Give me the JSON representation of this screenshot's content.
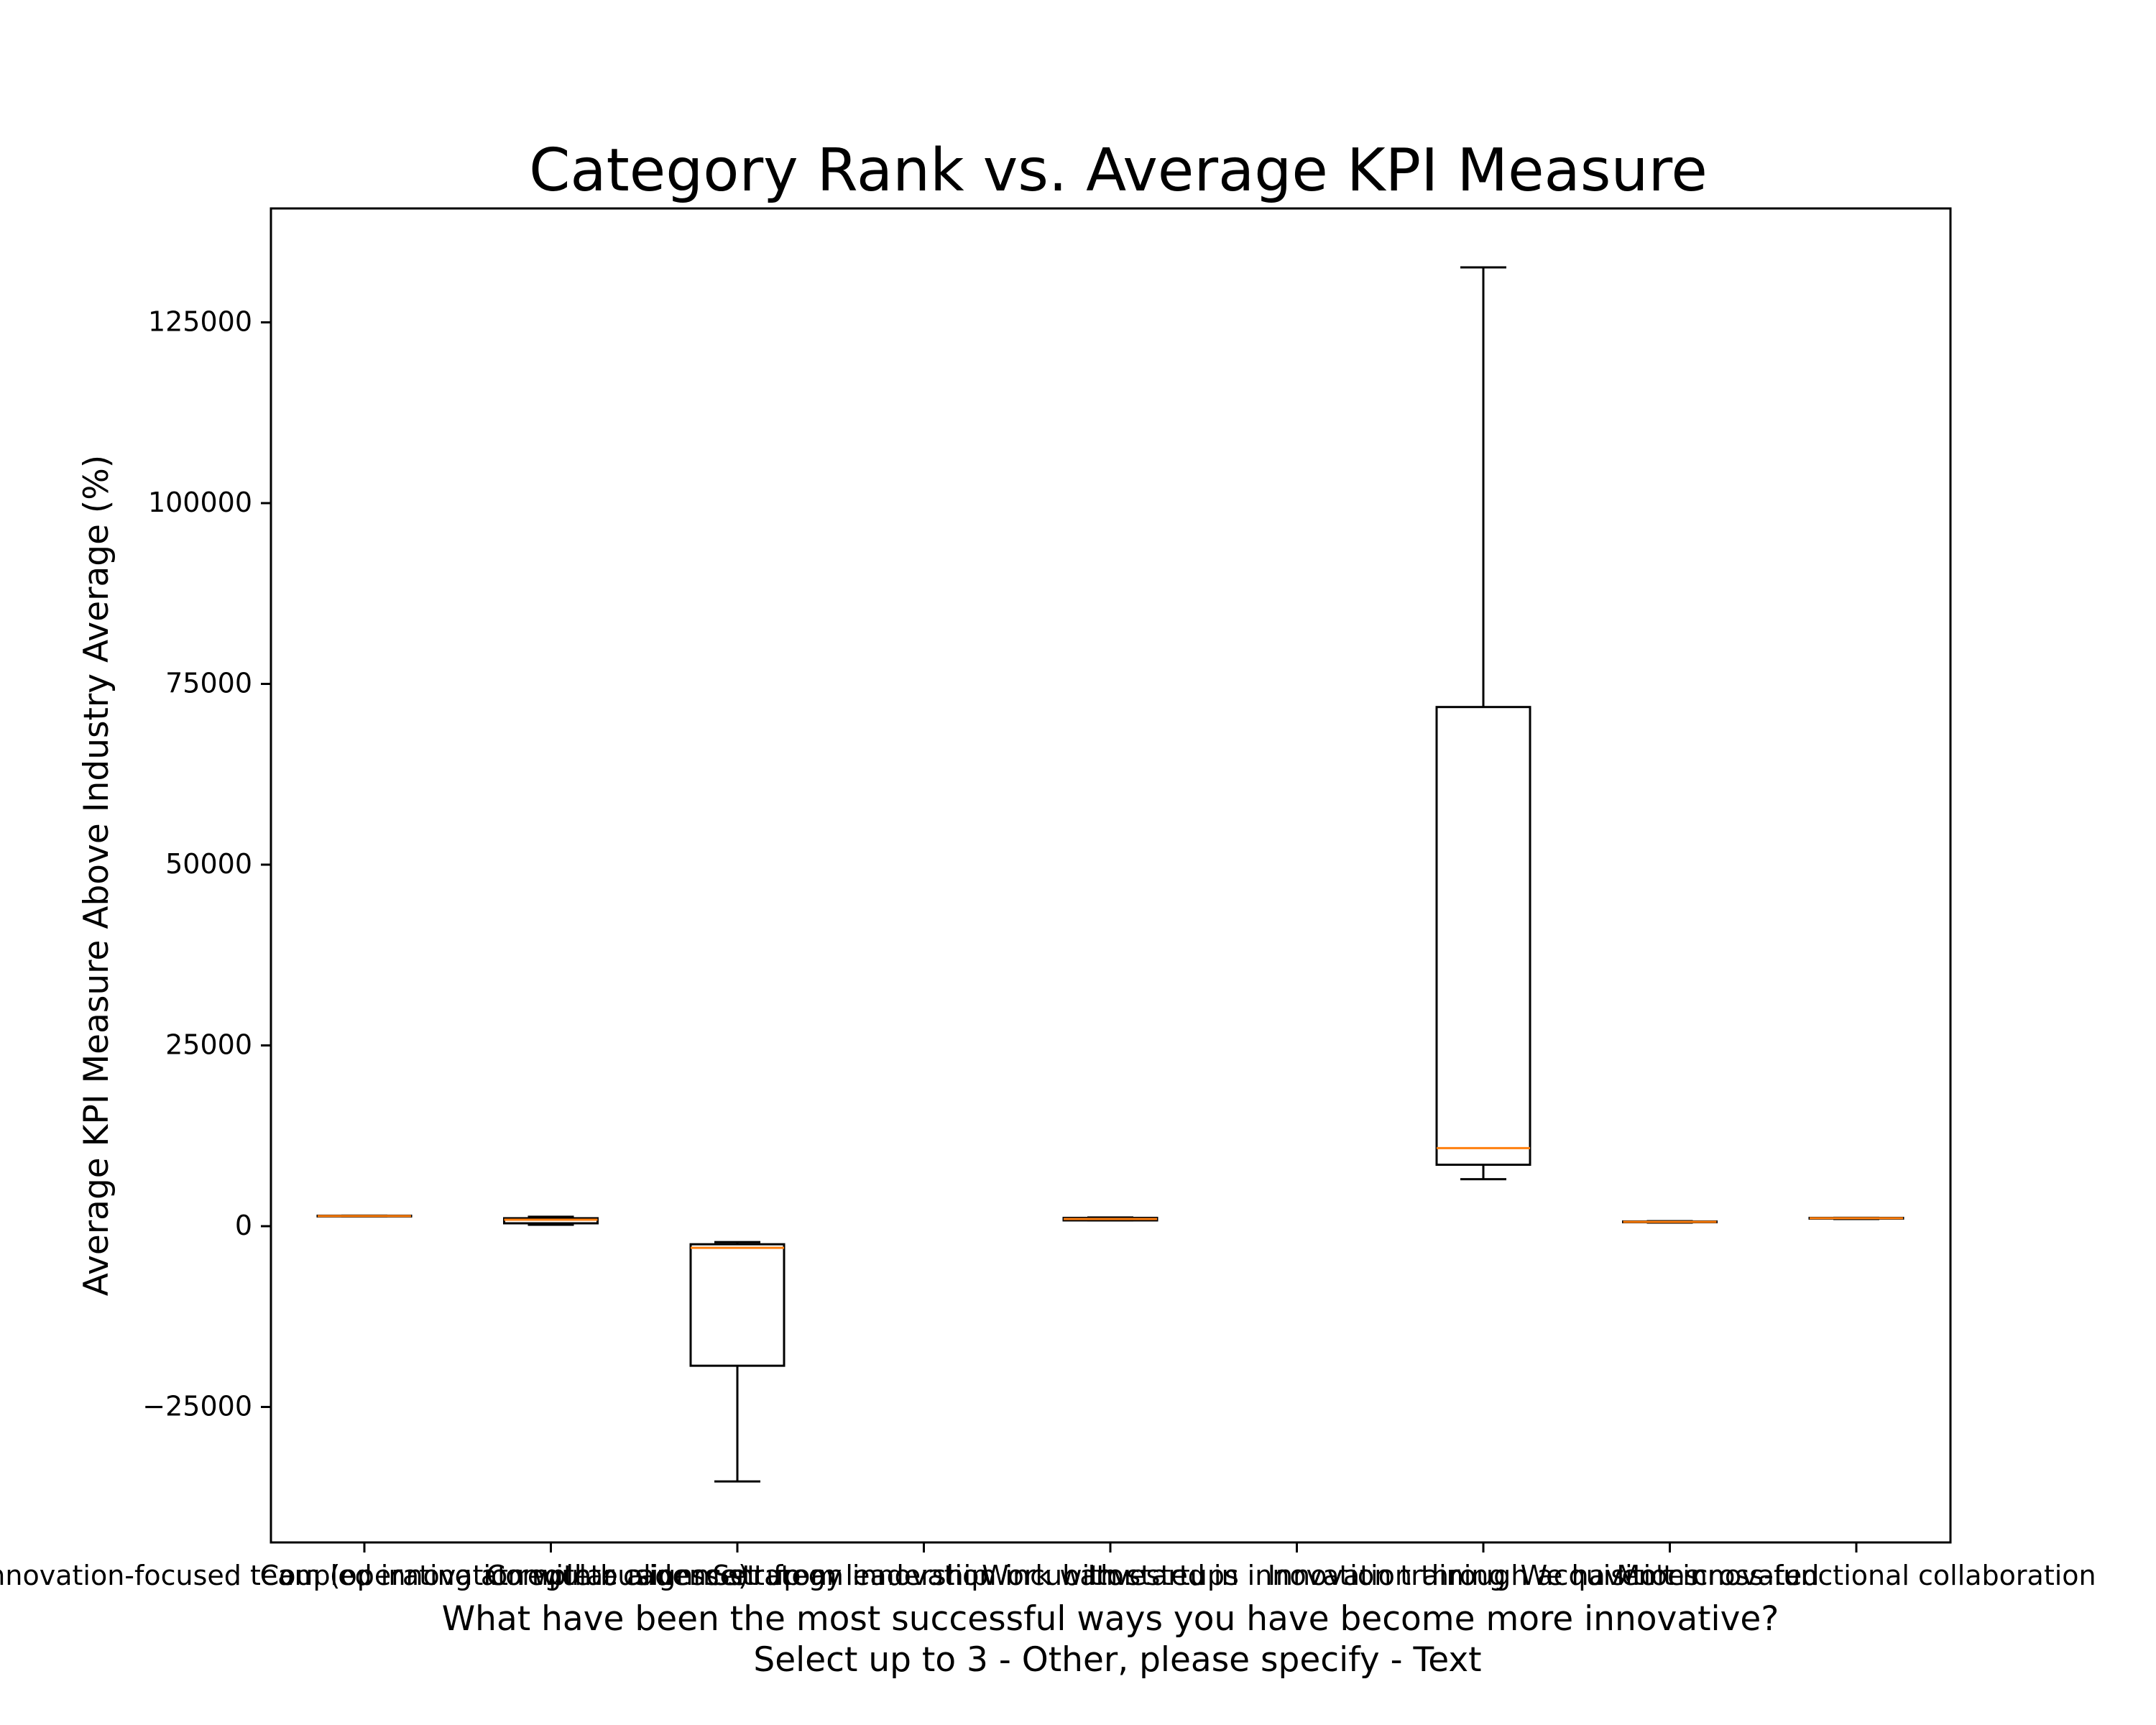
{
  "chart_data": {
    "type": "box",
    "title": "Category Rank vs. Average KPI Measure",
    "xlabel_lines": [
      "What have been the most successful ways you have become more innovative?",
      "Select up to 3 - Other, please specify - Text"
    ],
    "ylabel": "Average KPI Measure Above Industry Average (%)",
    "ylim": [
      -43000,
      141000
    ],
    "yticks": [
      -25000,
      0,
      25000,
      50000,
      75000,
      100000,
      125000
    ],
    "ytick_labels": [
      "−25000",
      "0",
      "25000",
      "50000",
      "75000",
      "100000",
      "125000"
    ],
    "grid": false,
    "colors": {
      "box": "#000000",
      "median": "#ff7f0e",
      "whisker": "#000000"
    },
    "categories": [
      "Innovation-focused team (operating at regular cadence)",
      "Coupled innovation with business strategy",
      "Complete alignment from leadership",
      "Set up an innovation incubator",
      "Work with startups",
      "Invested in innovation training",
      "Innovation through acquisitions",
      "We haven't innovated",
      "More cross-functional collaboration"
    ],
    "boxes": [
      {
        "whislo": 1350,
        "q1": 1350,
        "med": 1400,
        "q3": 1450,
        "whishi": 1450
      },
      {
        "whislo": 200,
        "q1": 400,
        "med": 900,
        "q3": 1100,
        "whishi": 1300
      },
      {
        "whislo": -35300,
        "q1": -19300,
        "med": -3000,
        "q3": -2500,
        "whishi": -2200
      },
      null,
      {
        "whislo": 800,
        "q1": 800,
        "med": 1000,
        "q3": 1150,
        "whishi": 1200
      },
      null,
      {
        "whislo": 6500,
        "q1": 8500,
        "med": 10800,
        "q3": 71800,
        "whishi": 132600
      },
      {
        "whislo": 500,
        "q1": 550,
        "med": 600,
        "q3": 650,
        "whishi": 700
      },
      {
        "whislo": 1000,
        "q1": 1050,
        "med": 1100,
        "q3": 1150,
        "whishi": 1150
      }
    ]
  }
}
